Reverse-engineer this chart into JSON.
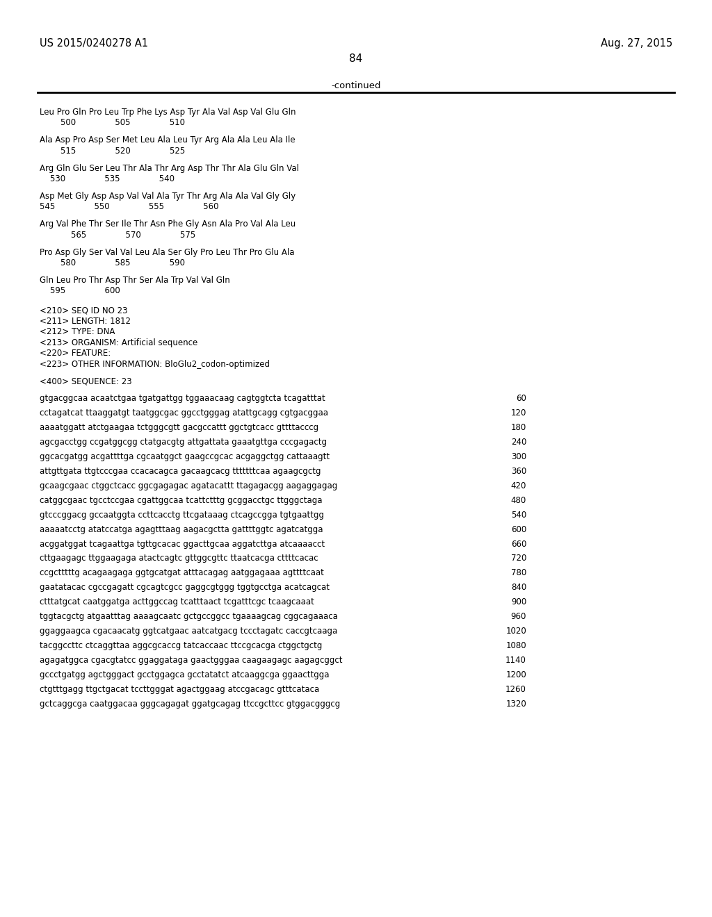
{
  "header_left": "US 2015/0240278 A1",
  "header_right": "Aug. 27, 2015",
  "page_number": "84",
  "continued_label": "-continued",
  "background_color": "#ffffff",
  "text_color": "#000000",
  "mono_font": "Courier New",
  "serif_font": "Times New Roman",
  "protein_lines": [
    "Leu Pro Gln Pro Leu Trp Phe Lys Asp Tyr Ala Val Asp Val Glu Gln",
    "        500               505               510",
    "",
    "Ala Asp Pro Asp Ser Met Leu Ala Leu Tyr Arg Ala Ala Leu Ala Ile",
    "        515               520               525",
    "",
    "Arg Gln Glu Ser Leu Thr Ala Thr Arg Asp Thr Thr Ala Glu Gln Val",
    "    530               535               540",
    "",
    "Asp Met Gly Asp Asp Val Val Ala Tyr Thr Arg Ala Ala Val Gly Gly",
    "545               550               555               560",
    "",
    "Arg Val Phe Thr Ser Ile Thr Asn Phe Gly Asn Ala Pro Val Ala Leu",
    "            565               570               575",
    "",
    "Pro Asp Gly Ser Val Val Leu Ala Ser Gly Pro Leu Thr Pro Glu Ala",
    "        580               585               590",
    "",
    "Gln Leu Pro Thr Asp Thr Ser Ala Trp Val Val Gln",
    "    595               600"
  ],
  "meta_lines": [
    "<210> SEQ ID NO 23",
    "<211> LENGTH: 1812",
    "<212> TYPE: DNA",
    "<213> ORGANISM: Artificial sequence",
    "<220> FEATURE:",
    "<223> OTHER INFORMATION: BloGlu2_codon-optimized"
  ],
  "seq_label": "<400> SEQUENCE: 23",
  "dna_lines": [
    [
      "gtgacggcaa acaatctgaa tgatgattgg tggaaacaag cagtggtcta tcagatttat",
      "60"
    ],
    [
      "cctagatcat ttaaggatgt taatggcgac ggcctgggag atattgcagg cgtgacggaa",
      "120"
    ],
    [
      "aaaatggatt atctgaagaa tctgggcgtt gacgccattt ggctgtcacc gttttacccg",
      "180"
    ],
    [
      "agcgacctgg ccgatggcgg ctatgacgtg attgattata gaaatgttga cccgagactg",
      "240"
    ],
    [
      "ggcacgatgg acgattttga cgcaatggct gaagccgcac acgaggctgg cattaaagtt",
      "300"
    ],
    [
      "attgttgata ttgtcccgaa ccacacagca gacaagcacg tttttttcaa agaagcgctg",
      "360"
    ],
    [
      "gcaagcgaac ctggctcacc ggcgagagac agatacattt ttagagacgg aagaggagag",
      "420"
    ],
    [
      "catggcgaac tgcctccgaa cgattggcaa tcattctttg gcggacctgc ttgggctaga",
      "480"
    ],
    [
      "gtcccggacg gccaatggta ccttcacctg ttcgataaag ctcagccgga tgtgaattgg",
      "540"
    ],
    [
      "aaaaatcctg atatccatga agagtttaag aagacgctta gattttggtc agatcatgga",
      "600"
    ],
    [
      "acggatggat tcagaattga tgttgcacac ggacttgcaa aggatcttga atcaaaacct",
      "660"
    ],
    [
      "cttgaagagc ttggaagaga atactcagtc gttggcgttc ttaatcacga cttttcacac",
      "720"
    ],
    [
      "ccgctttttg acagaagaga ggtgcatgat atttacagag aatggagaaa agttttcaat",
      "780"
    ],
    [
      "gaatatacac cgccgagatt cgcagtcgcc gaggcgtggg tggtgcctga acatcagcat",
      "840"
    ],
    [
      "ctttatgcat caatggatga acttggccag tcatttaact tcgatttcgc tcaagcaaat",
      "900"
    ],
    [
      "tggtacgctg atgaatttag aaaagcaatc gctgccggcc tgaaaagcag cggcagaaaca",
      "960"
    ],
    [
      "ggaggaagca cgacaacatg ggtcatgaac aatcatgacg tccctagatc caccgtcaaga",
      "1020"
    ],
    [
      "tacggccttc ctcaggttaa aggcgcaccg tatcaccaac ttccgcacga ctggctgctg",
      "1080"
    ],
    [
      "agagatggca cgacgtatcc ggaggataga gaactgggaa caagaagagc aagagcggct",
      "1140"
    ],
    [
      "gccctgatgg agctgggact gcctggagca gcctatatct atcaaggcga ggaacttgga",
      "1200"
    ],
    [
      "ctgtttgagg ttgctgacat tccttgggat agactggaag atccgacagc gtttcataca",
      "1260"
    ],
    [
      "gctcaggcga caatggacaa gggcagagat ggatgcagag ttccgcttcc gtggacgggcg",
      "1320"
    ]
  ]
}
